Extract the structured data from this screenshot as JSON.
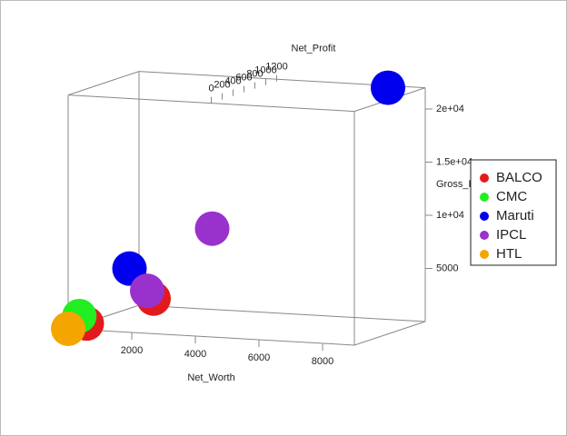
{
  "chart_data": {
    "type": "scatter3d",
    "x_label": "Net_Worth",
    "y_label": "Gross_Revenue",
    "z_label": "Net_Profit",
    "xlim": [
      0,
      9000
    ],
    "ylim": [
      0,
      22000
    ],
    "zlim": [
      0,
      1300
    ],
    "xticks": [
      2000,
      4000,
      6000,
      8000
    ],
    "yticks": [
      5000,
      {
        "value": 10000,
        "label": "1e+04"
      },
      {
        "value": 15000,
        "label": "1.5e+04"
      },
      {
        "value": 20000,
        "label": "2e+04"
      }
    ],
    "zticks": [
      0,
      200,
      400,
      600,
      800,
      1000,
      1200
    ],
    "legend": "right",
    "series": [
      {
        "name": "BALCO",
        "color": "#e31a1c",
        "x": [
          500,
          2000
        ],
        "y": [
          500,
          2500
        ],
        "z": [
          50,
          400
        ]
      },
      {
        "name": "CMC",
        "color": "#22ee22",
        "x": [
          300
        ],
        "y": [
          1200
        ],
        "z": [
          30
        ]
      },
      {
        "name": "Maruti",
        "color": "#0000ee",
        "x": [
          1500,
          8000
        ],
        "y": [
          5500,
          22000
        ],
        "z": [
          250,
          1200
        ]
      },
      {
        "name": "IPCL",
        "color": "#9932cc",
        "x": [
          1800,
          3500
        ],
        "y": [
          3200,
          9000
        ],
        "z": [
          400,
          600
        ]
      },
      {
        "name": "HTL",
        "color": "#f5a500",
        "x": [
          0
        ],
        "y": [
          0
        ],
        "z": [
          0
        ]
      }
    ]
  }
}
